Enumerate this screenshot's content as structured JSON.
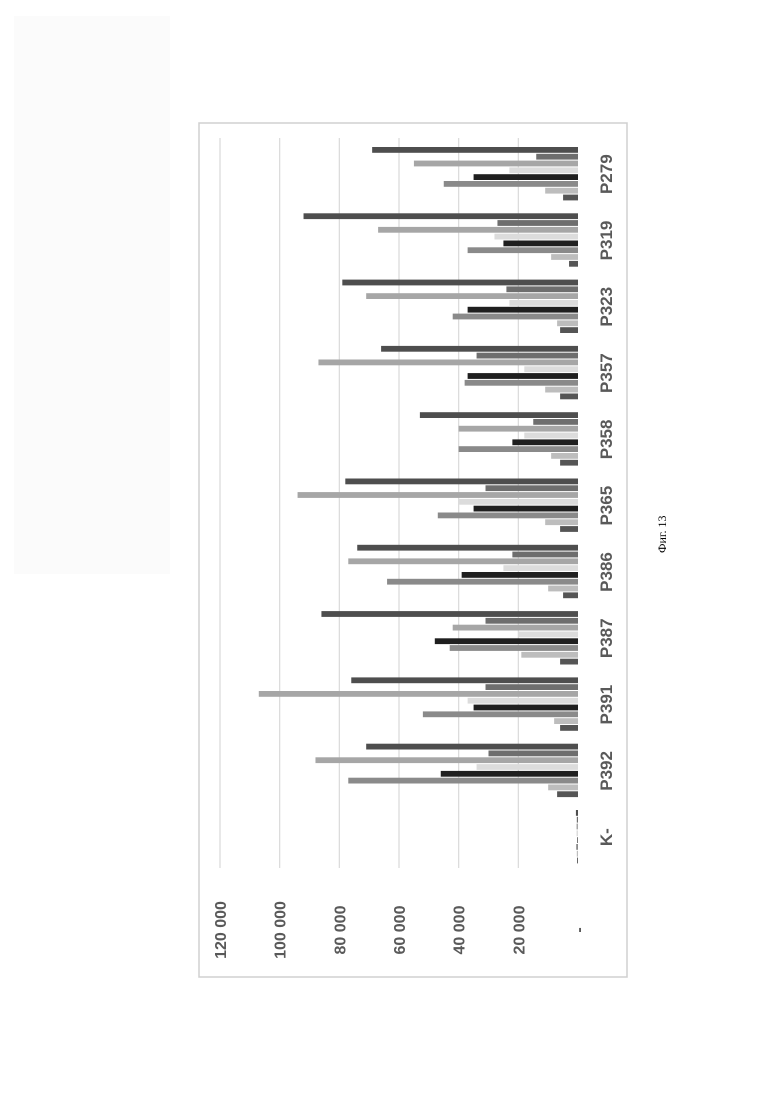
{
  "figure_caption": "Фиг. 13",
  "chart_data": {
    "type": "bar",
    "orientation": "rotated-90",
    "title": "",
    "xlabel": "",
    "ylabel": "",
    "ylim": [
      0,
      120000
    ],
    "y_ticks": [
      "-",
      "20 000",
      "40 000",
      "60 000",
      "80 000",
      "100 000",
      "120 000"
    ],
    "grid": true,
    "legend": "none",
    "categories": [
      "P279",
      "P319",
      "P323",
      "P357",
      "P358",
      "P365",
      "P386",
      "P387",
      "P391",
      "P392",
      "K-"
    ],
    "series": [
      {
        "color": "#555555",
        "values": [
          5000,
          3000,
          6000,
          6000,
          6000,
          6000,
          5000,
          6000,
          6000,
          7000,
          300
        ]
      },
      {
        "color": "#bdbdbd",
        "values": [
          11000,
          9000,
          7000,
          11000,
          9000,
          11000,
          10000,
          19000,
          8000,
          10000,
          400
        ]
      },
      {
        "color": "#8a8a8a",
        "values": [
          45000,
          37000,
          42000,
          38000,
          40000,
          47000,
          64000,
          43000,
          52000,
          77000,
          600
        ]
      },
      {
        "color": "#1f1f1f",
        "values": [
          35000,
          25000,
          37000,
          37000,
          22000,
          35000,
          39000,
          48000,
          35000,
          46000,
          200
        ]
      },
      {
        "color": "#dcdcdc",
        "values": [
          23000,
          28000,
          23000,
          18000,
          18000,
          40000,
          25000,
          20000,
          37000,
          34000,
          500
        ]
      },
      {
        "color": "#a6a6a6",
        "values": [
          55000,
          67000,
          71000,
          87000,
          40000,
          94000,
          77000,
          42000,
          107000,
          88000,
          500
        ]
      },
      {
        "color": "#6e6e6e",
        "values": [
          14000,
          27000,
          24000,
          34000,
          15000,
          31000,
          22000,
          31000,
          31000,
          30000,
          400
        ]
      },
      {
        "color": "#4e4e4e",
        "values": [
          69000,
          92000,
          79000,
          66000,
          53000,
          78000,
          74000,
          86000,
          76000,
          71000,
          700
        ]
      }
    ]
  }
}
